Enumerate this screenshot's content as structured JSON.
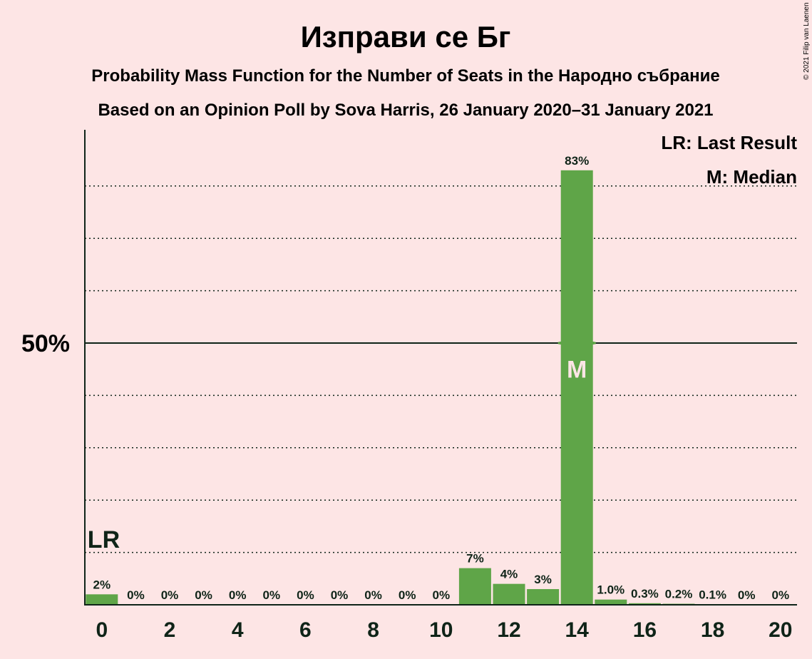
{
  "colors": {
    "background": "#fde5e5",
    "bar": "#5fa548",
    "text": "#0f2418"
  },
  "title": "Изправи се Бг",
  "subtitle1": "Probability Mass Function for the Number of Seats in the Народно събрание",
  "subtitle2": "Based on an Opinion Poll by Sova Harris, 26 January 2020–31 January 2021",
  "copyright": "© 2021 Filip van Laenen",
  "legend": {
    "last_result": "LR: Last Result",
    "median": "M: Median"
  },
  "markers": {
    "last_result_label": "LR",
    "median_label": "M",
    "last_result_seat": 0,
    "median_seat": 14
  },
  "chart_data": {
    "type": "bar",
    "x": [
      0,
      1,
      2,
      3,
      4,
      5,
      6,
      7,
      8,
      9,
      10,
      11,
      12,
      13,
      14,
      15,
      16,
      17,
      18,
      19,
      20
    ],
    "values": [
      2,
      0,
      0,
      0,
      0,
      0,
      0,
      0,
      0,
      0,
      0,
      7,
      4,
      3,
      83,
      1.0,
      0.3,
      0.2,
      0.1,
      0,
      0
    ],
    "value_labels": [
      "2%",
      "0%",
      "0%",
      "0%",
      "0%",
      "0%",
      "0%",
      "0%",
      "0%",
      "0%",
      "0%",
      "7%",
      "4%",
      "3%",
      "83%",
      "1.0%",
      "0.3%",
      "0.2%",
      "0.1%",
      "0%",
      "0%"
    ],
    "x_tick_labels": [
      "0",
      "2",
      "4",
      "6",
      "8",
      "10",
      "12",
      "14",
      "16",
      "18",
      "20"
    ],
    "y_tick_label": "50%",
    "ylim": [
      0,
      90
    ],
    "grid": "dotted every 10%, solid at 50%"
  }
}
